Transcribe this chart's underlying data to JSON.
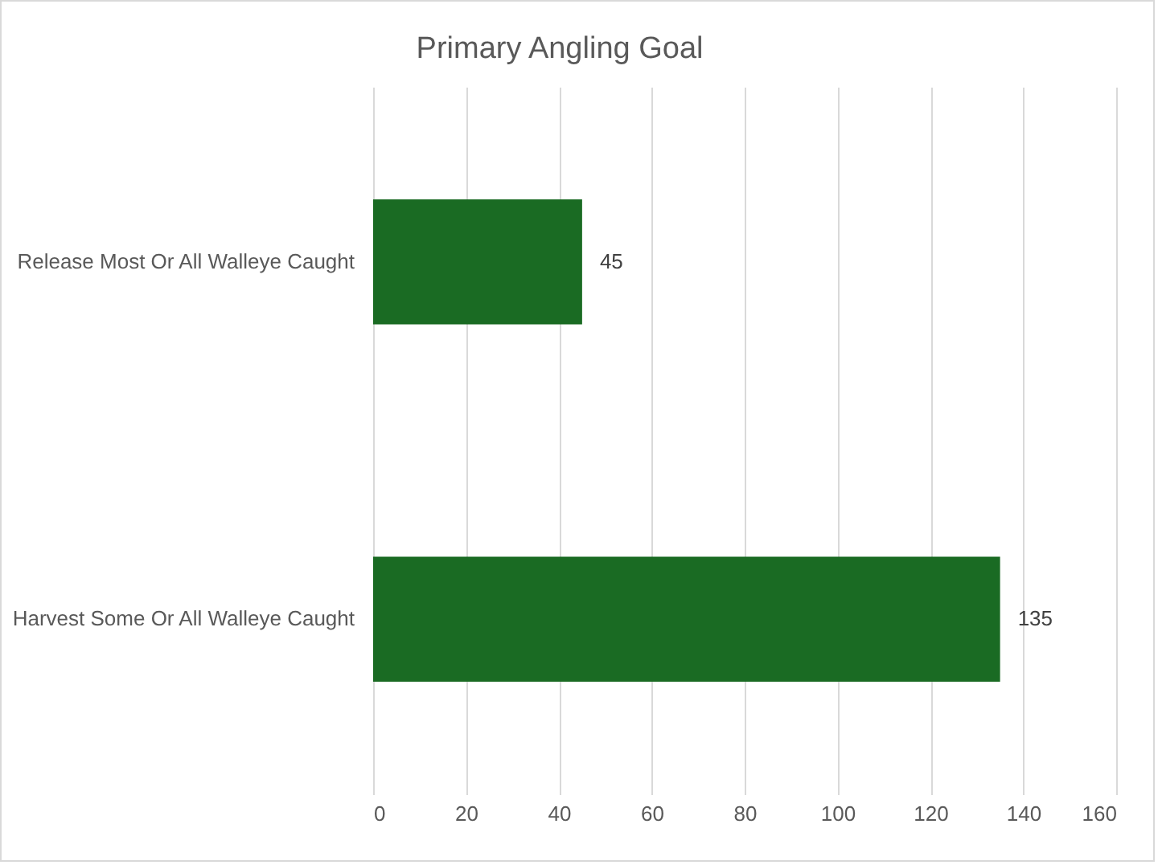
{
  "chart_data": {
    "type": "bar",
    "orientation": "horizontal",
    "title": "Primary Angling Goal",
    "categories": [
      "Release Most Or All Walleye Caught",
      "Harvest Some Or All Walleye Caught"
    ],
    "values": [
      45,
      135
    ],
    "color": "#1a6b23",
    "xlim": [
      0,
      160
    ],
    "xticks": [
      0,
      20,
      40,
      60,
      80,
      100,
      120,
      140,
      160
    ],
    "grid": "x",
    "data_labels": true
  }
}
